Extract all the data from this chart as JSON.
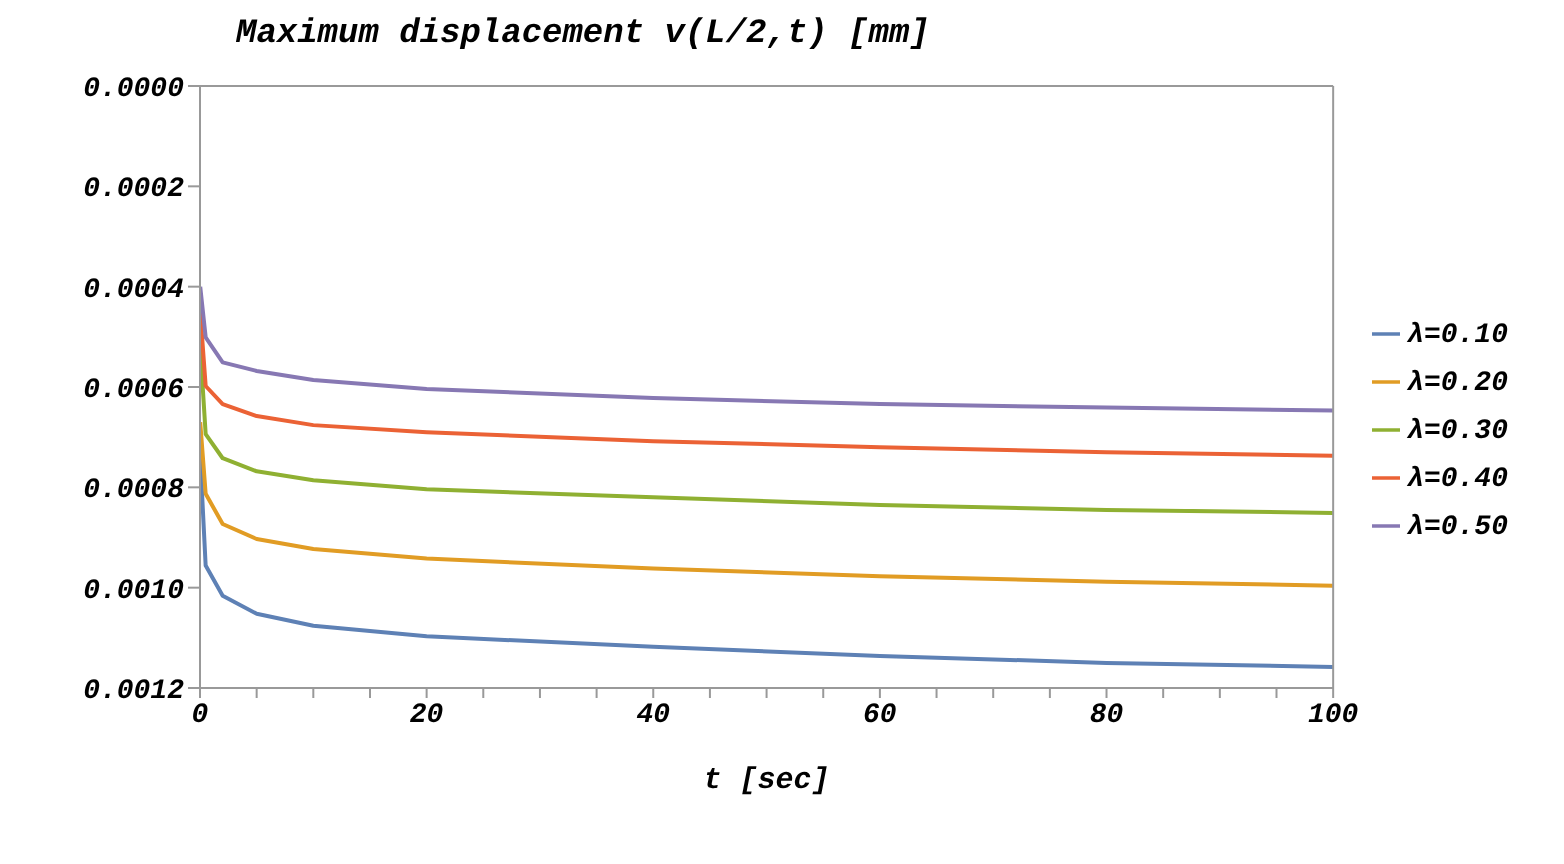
{
  "chart_data": {
    "type": "line",
    "title": "Maximum displacement v(L/2,t) [mm]",
    "xlabel": "t [sec]",
    "xlim": [
      0,
      100
    ],
    "xticks": [
      0,
      {
        "value": 5,
        "label": null
      },
      {
        "value": 10,
        "label": null
      },
      {
        "value": 15,
        "label": null
      },
      20,
      {
        "value": 25,
        "label": null
      },
      {
        "value": 30,
        "label": null
      },
      {
        "value": 35,
        "label": null
      },
      40,
      {
        "value": 45,
        "label": null
      },
      {
        "value": 50,
        "label": null
      },
      {
        "value": 55,
        "label": null
      },
      60,
      {
        "value": 65,
        "label": null
      },
      {
        "value": 70,
        "label": null
      },
      {
        "value": 75,
        "label": null
      },
      80,
      {
        "value": 85,
        "label": null
      },
      {
        "value": 90,
        "label": null
      },
      {
        "value": 95,
        "label": null
      },
      100
    ],
    "ylim": [
      0.0012,
      0
    ],
    "yticks": [
      {
        "value": 0,
        "label": "0.0000"
      },
      {
        "value": 0.0002,
        "label": "0.0002"
      },
      {
        "value": 0.0004,
        "label": "0.0004"
      },
      {
        "value": 0.0006,
        "label": "0.0006"
      },
      {
        "value": 0.0008,
        "label": "0.0008"
      },
      {
        "value": 0.001,
        "label": "0.0010"
      },
      {
        "value": 0.0012,
        "label": "0.0012"
      }
    ],
    "legend": "right",
    "grid": false,
    "marker": "none",
    "line_style": "solid",
    "x": [
      0.02,
      0.5,
      2,
      5,
      10,
      20,
      40,
      60,
      80,
      100
    ],
    "series": [
      {
        "name": "λ=0.10",
        "color": "#5e81b5",
        "values": [
          0.00074,
          0.000956,
          0.001016,
          0.001052,
          0.001076,
          0.001097,
          0.001118,
          0.001136,
          0.00115,
          0.001158
        ]
      },
      {
        "name": "λ=0.20",
        "color": "#e19c24",
        "values": [
          0.00067,
          0.000813,
          0.000873,
          0.000903,
          0.000923,
          0.000942,
          0.000962,
          0.000977,
          0.000988,
          0.000996
        ]
      },
      {
        "name": "λ=0.30",
        "color": "#8fb032",
        "values": [
          0.00052,
          0.000694,
          0.000742,
          0.000768,
          0.000786,
          0.000804,
          0.00082,
          0.000835,
          0.000845,
          0.000851
        ]
      },
      {
        "name": "λ=0.40",
        "color": "#eb6235",
        "values": [
          0.00045,
          0.000598,
          0.000634,
          0.000658,
          0.000676,
          0.00069,
          0.000708,
          0.00072,
          0.00073,
          0.000737
        ]
      },
      {
        "name": "λ=0.50",
        "color": "#8778b3",
        "values": [
          0.0004,
          0.000501,
          0.000551,
          0.000568,
          0.000586,
          0.000604,
          0.000622,
          0.000634,
          0.000641,
          0.000647
        ]
      }
    ]
  }
}
